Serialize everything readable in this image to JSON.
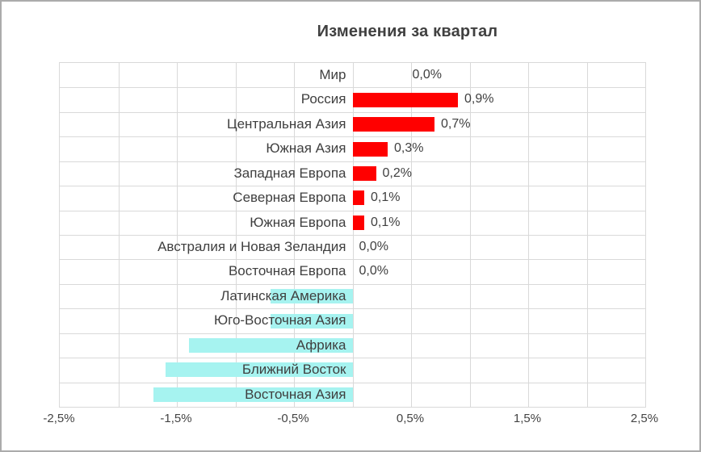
{
  "window": {
    "background": "#FFFFFF",
    "border_color": "#ABABAB"
  },
  "chart_data": {
    "type": "bar",
    "orientation": "horizontal",
    "title": "Изменения за квартал",
    "categories": [
      "Мир",
      "Россия",
      "Центральная Азия",
      "Южная Азия",
      "Западная Европа",
      "Северная Европа",
      "Южная Европа",
      "Австралия и Новая Зеландия",
      "Восточная Европа",
      "Латинская Америка",
      "Юго-Восточная Азия",
      "Африка",
      "Ближний Восток",
      "Восточная Азия"
    ],
    "values": [
      0.0,
      0.9,
      0.7,
      0.3,
      0.2,
      0.1,
      0.1,
      0.0,
      0.0,
      -0.7,
      -0.7,
      -1.4,
      -1.6,
      -1.7
    ],
    "value_labels": [
      "0,0%",
      "0,9%",
      "0,7%",
      "0,3%",
      "0,2%",
      "0,1%",
      "0,1%",
      "0,0%",
      "0,0%",
      "",
      "",
      "",
      "",
      ""
    ],
    "xlim": [
      -2.5,
      2.5
    ],
    "x_tick_labels": [
      "-2,5%",
      "-1,5%",
      "-0,5%",
      "0,5%",
      "1,5%",
      "2,5%"
    ],
    "x_tick_values": [
      -2.5,
      -1.5,
      -0.5,
      0.5,
      1.5,
      2.5
    ],
    "gridline_step": 0.5,
    "grid": true,
    "legend": false,
    "colors": {
      "positive_bar": "#FF0000",
      "negative_bar": "#A6F3F0",
      "gridline": "#D9D9D9",
      "title_text": "#404040",
      "label_text": "#3F3F3F",
      "tick_text": "#444444"
    }
  }
}
